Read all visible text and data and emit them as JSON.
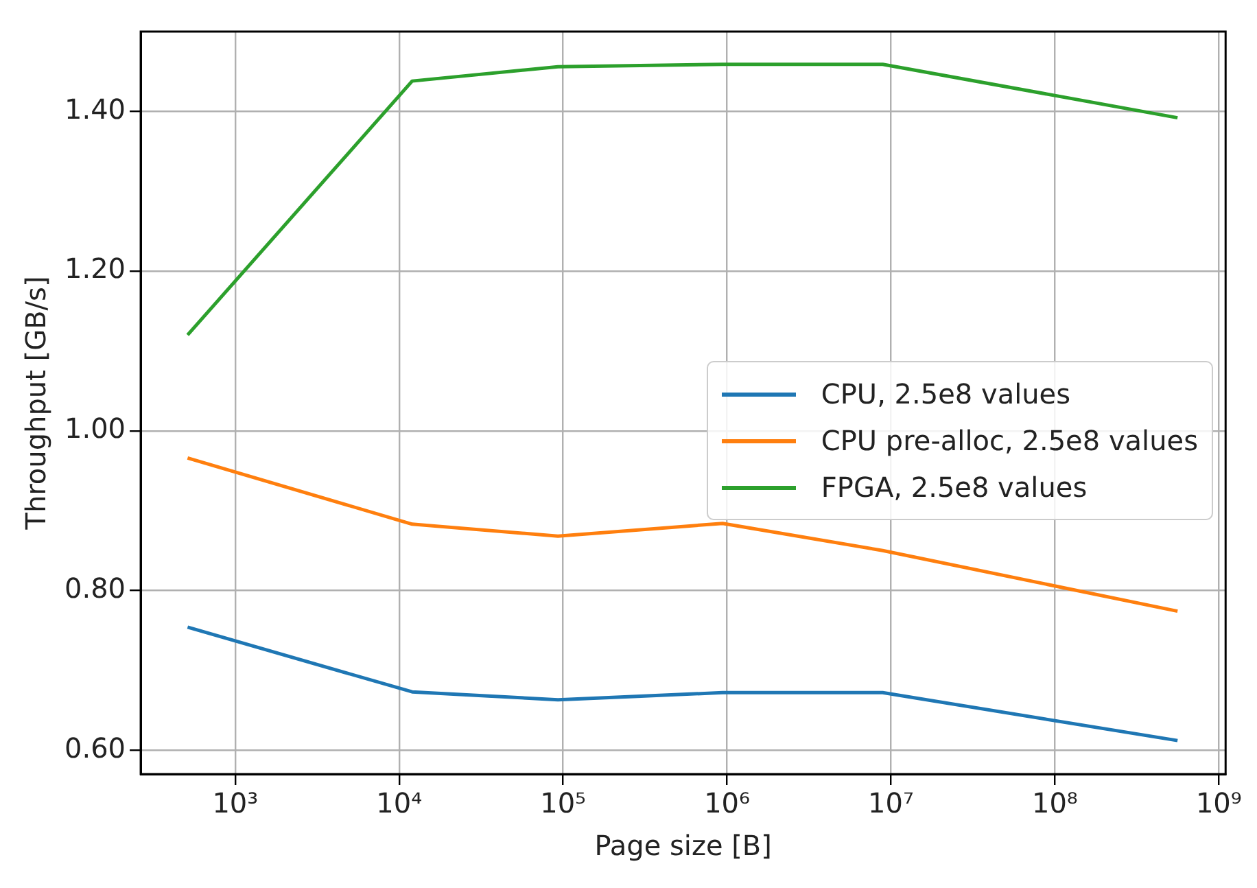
{
  "chart_data": {
    "type": "line",
    "xlabel": "Page size [B]",
    "ylabel": "Throughput [GB/s]",
    "log": "x",
    "grid": true,
    "legend": "center right",
    "marker": "none",
    "line_style": "solid",
    "xlim": [
      265,
      1100000000
    ],
    "xticks": [
      {
        "value": 1000,
        "label": "10³"
      },
      {
        "value": 10000,
        "label": "10⁴"
      },
      {
        "value": 100000,
        "label": "10⁵"
      },
      {
        "value": 1000000,
        "label": "10⁶"
      },
      {
        "value": 10000000,
        "label": "10⁷"
      },
      {
        "value": 100000000,
        "label": "10⁸"
      },
      {
        "value": 1000000000,
        "label": "10⁹"
      }
    ],
    "ylim": [
      0.57,
      1.5
    ],
    "yticks": [
      {
        "value": 0.6,
        "label": "0.60"
      },
      {
        "value": 0.8,
        "label": "0.80"
      },
      {
        "value": 1.0,
        "label": "1.00"
      },
      {
        "value": 1.2,
        "label": "1.20"
      },
      {
        "value": 1.4,
        "label": "1.40"
      }
    ],
    "x": [
      512,
      12000,
      93000,
      940000,
      8900000,
      560000000
    ],
    "series": [
      {
        "name": "CPU, 2.5e8 values",
        "color": "#1f77b4",
        "values": [
          0.754,
          0.673,
          0.663,
          0.672,
          0.672,
          0.612
        ]
      },
      {
        "name": "CPU pre-alloc, 2.5e8 values",
        "color": "#ff7f0e",
        "values": [
          0.966,
          0.883,
          0.868,
          0.884,
          0.85,
          0.774
        ]
      },
      {
        "name": "FPGA, 2.5e8 values",
        "color": "#2ca02c",
        "values": [
          1.12,
          1.438,
          1.456,
          1.459,
          1.459,
          1.392
        ]
      }
    ]
  }
}
